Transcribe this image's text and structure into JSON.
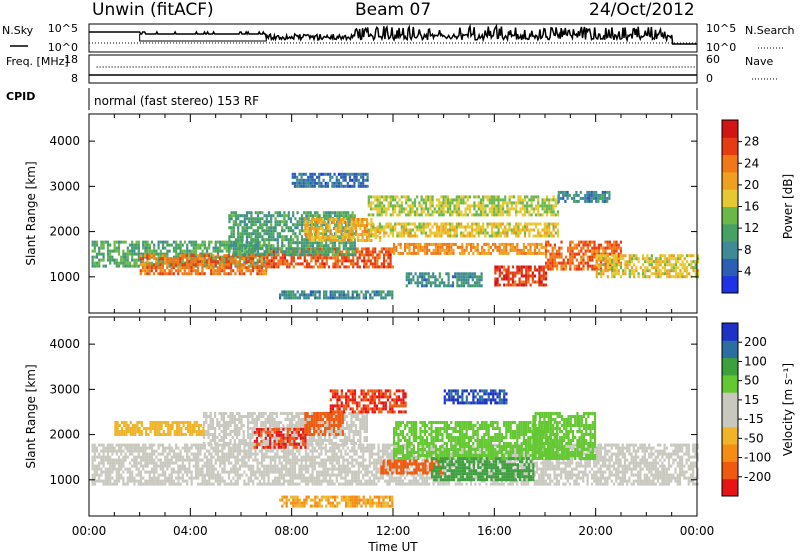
{
  "header": {
    "radar": "Unwin (fitACF)",
    "beam": "Beam 07",
    "date": "24/Oct/2012"
  },
  "colors": {
    "power_scale": [
      "#1e32e6",
      "#2c5fb4",
      "#3f8a96",
      "#47a064",
      "#6ab84a",
      "#e6c832",
      "#f0a020",
      "#f07818",
      "#e63c14",
      "#d21414"
    ],
    "velocity_scale": [
      "#e61414",
      "#f05a10",
      "#f58c14",
      "#f0b428",
      "#c8c8be",
      "#c8c8be",
      "#64c832",
      "#3ca03c",
      "#2d6ea0",
      "#1e32c8"
    ]
  },
  "chart_data": [
    {
      "type": "line",
      "panel": "sky-search",
      "left_axis": {
        "label": "N.Sky",
        "ticks": [
          "10^5",
          "10^0"
        ]
      },
      "right_axis": {
        "label": "N.Search",
        "ticks": [
          "10^5",
          "10^0"
        ]
      },
      "series": [
        {
          "name": "N.Sky"
        },
        {
          "name": "N.Search"
        }
      ]
    },
    {
      "type": "line",
      "panel": "freq-nave",
      "left_axis": {
        "label": "Freq. [MHz]",
        "ticks": [
          "18",
          "8"
        ]
      },
      "right_axis": {
        "label": "Nave",
        "ticks": [
          "60",
          "0"
        ]
      },
      "series": [
        {
          "name": "Freq."
        },
        {
          "name": "Nave"
        }
      ]
    },
    {
      "type": "table",
      "panel": "cpid",
      "label": "CPID",
      "text": "normal (fast stereo) 153 RF"
    },
    {
      "type": "heatmap",
      "panel": "power",
      "ylabel": "Slant Range [km]",
      "ylim": [
        200,
        4600
      ],
      "yticks": [
        "1000",
        "2000",
        "3000",
        "4000"
      ],
      "xlim": [
        0,
        24
      ],
      "colorbar": {
        "label": "Power [dB]",
        "ticks": [
          "4",
          "8",
          "12",
          "16",
          "20",
          "24",
          "28"
        ],
        "range": [
          0,
          32
        ]
      },
      "echo_bands": [
        {
          "t0": 0.1,
          "t1": 7.0,
          "r0": 1250,
          "r1": 1800,
          "value": 12
        },
        {
          "t0": 2.0,
          "t1": 7.0,
          "r0": 1100,
          "r1": 1500,
          "value": 24
        },
        {
          "t0": 7.0,
          "t1": 12.0,
          "r0": 1250,
          "r1": 1650,
          "value": 26
        },
        {
          "t0": 5.5,
          "t1": 10.5,
          "r0": 1500,
          "r1": 2450,
          "value": 11
        },
        {
          "t0": 8.5,
          "t1": 11.5,
          "r0": 1800,
          "r1": 2300,
          "value": 20
        },
        {
          "t0": 11.0,
          "t1": 18.5,
          "r0": 1900,
          "r1": 2200,
          "value": 18
        },
        {
          "t0": 11.0,
          "t1": 18.5,
          "r0": 2400,
          "r1": 2800,
          "value": 16
        },
        {
          "t0": 12.0,
          "t1": 18.0,
          "r0": 1550,
          "r1": 1750,
          "value": 22
        },
        {
          "t0": 16.0,
          "t1": 18.0,
          "r0": 850,
          "r1": 1250,
          "value": 28
        },
        {
          "t0": 12.5,
          "t1": 15.5,
          "r0": 800,
          "r1": 1100,
          "value": 9
        },
        {
          "t0": 18.0,
          "t1": 21.0,
          "r0": 1200,
          "r1": 1800,
          "value": 25
        },
        {
          "t0": 20.0,
          "t1": 24.0,
          "r0": 1000,
          "r1": 1500,
          "value": 18
        },
        {
          "t0": 7.5,
          "t1": 12.0,
          "r0": 550,
          "r1": 700,
          "value": 8
        },
        {
          "t0": 8.0,
          "t1": 11.0,
          "r0": 3000,
          "r1": 3300,
          "value": 6
        },
        {
          "t0": 18.5,
          "t1": 20.5,
          "r0": 2650,
          "r1": 2900,
          "value": 8
        }
      ]
    },
    {
      "type": "heatmap",
      "panel": "velocity",
      "ylabel": "Slant Range [km]",
      "ylim": [
        200,
        4600
      ],
      "yticks": [
        "1000",
        "2000",
        "3000",
        "4000"
      ],
      "xlabel": "Time UT",
      "xlim": [
        0,
        24
      ],
      "xticks": [
        "00:00",
        "04:00",
        "08:00",
        "12:00",
        "16:00",
        "20:00",
        "00:00"
      ],
      "colorbar": {
        "label": "Velocity [m s⁻¹]",
        "ticks": [
          "200",
          "100",
          "50",
          "15",
          "-15",
          "-50",
          "-100",
          "-200"
        ]
      },
      "echo_bands": [
        {
          "t0": 0.1,
          "t1": 24.0,
          "r0": 900,
          "r1": 1800,
          "value": 0
        },
        {
          "t0": 4.5,
          "t1": 11.0,
          "r0": 1800,
          "r1": 2500,
          "value": 0
        },
        {
          "t0": 1.0,
          "t1": 4.5,
          "r0": 2000,
          "r1": 2300,
          "value": -30
        },
        {
          "t0": 6.5,
          "t1": 8.5,
          "r0": 1750,
          "r1": 2150,
          "value": -200
        },
        {
          "t0": 8.5,
          "t1": 10.0,
          "r0": 2000,
          "r1": 2500,
          "value": -150
        },
        {
          "t0": 9.5,
          "t1": 12.5,
          "r0": 2500,
          "r1": 3000,
          "value": -200
        },
        {
          "t0": 11.5,
          "t1": 14.0,
          "r0": 1150,
          "r1": 1450,
          "value": -150
        },
        {
          "t0": 12.0,
          "t1": 18.5,
          "r0": 1500,
          "r1": 2300,
          "value": 30
        },
        {
          "t0": 13.5,
          "t1": 17.5,
          "r0": 1000,
          "r1": 1500,
          "value": 80
        },
        {
          "t0": 14.0,
          "t1": 16.5,
          "r0": 2700,
          "r1": 3000,
          "value": 200
        },
        {
          "t0": 7.5,
          "t1": 12.0,
          "r0": 450,
          "r1": 650,
          "value": -50
        },
        {
          "t0": 17.5,
          "t1": 20.0,
          "r0": 1500,
          "r1": 2500,
          "value": 30
        }
      ]
    }
  ]
}
